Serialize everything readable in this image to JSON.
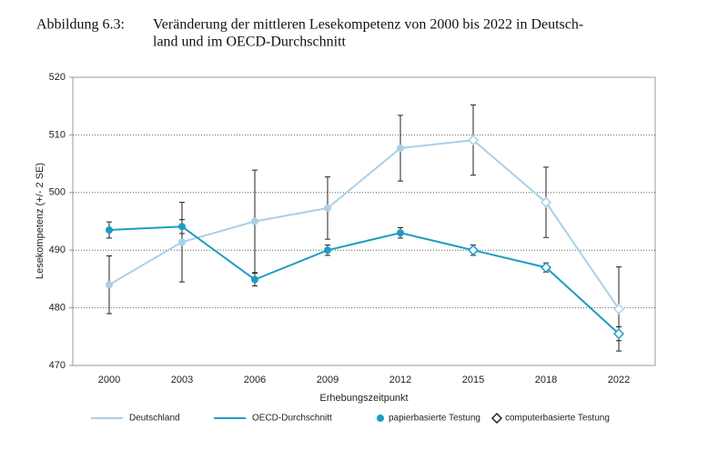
{
  "chart_data": {
    "type": "line",
    "figure_label": "Abbildung 6.3:",
    "title_lines": [
      "Veränderung der mittleren Lesekompetenz von 2000 bis 2022 in Deutsch-",
      "land und im OECD-Durchschnitt"
    ],
    "xlabel": "Erhebungszeitpunkt",
    "ylabel": "Lesekompetenz (+/- 2 SE)",
    "categories": [
      "2000",
      "2003",
      "2006",
      "2009",
      "2012",
      "2015",
      "2018",
      "2022"
    ],
    "ylim": [
      470,
      520
    ],
    "yticks": [
      470,
      480,
      490,
      500,
      510,
      520
    ],
    "grid": true,
    "series": [
      {
        "name": "Deutschland",
        "color": "#a9d0e8",
        "values": [
          484,
          491.4,
          495,
          497.3,
          507.7,
          509.1,
          498.3,
          479.8
        ],
        "errors": [
          5,
          6.9,
          8.9,
          5.4,
          5.7,
          6.1,
          6.1,
          7.3
        ]
      },
      {
        "name": "OECD-Durchschnitt",
        "color": "#1d9cc6",
        "values": [
          493.5,
          494.1,
          484.9,
          490,
          493,
          490,
          487,
          475.5
        ],
        "errors": [
          1.4,
          1.2,
          1.1,
          0.9,
          0.9,
          0.9,
          0.8,
          1.2
        ]
      }
    ],
    "point_shapes": [
      "circle",
      "circle",
      "circle",
      "circle",
      "circle",
      "diamond",
      "diamond",
      "diamond"
    ],
    "marker_legend": [
      {
        "name": "papierbasierte Testung",
        "shape": "circle"
      },
      {
        "name": "computerbasierte Testung",
        "shape": "diamond"
      }
    ]
  }
}
